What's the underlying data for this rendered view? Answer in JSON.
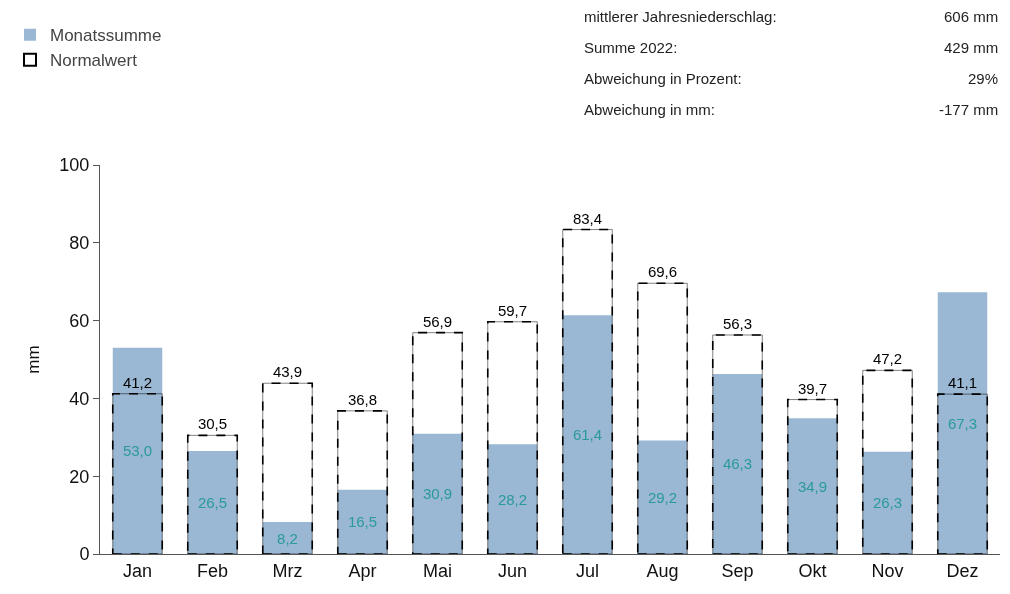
{
  "chart_data": {
    "type": "bar",
    "ylabel": "mm",
    "categories": [
      "Jan",
      "Feb",
      "Mrz",
      "Apr",
      "Mai",
      "Jun",
      "Jul",
      "Aug",
      "Sep",
      "Okt",
      "Nov",
      "Dez"
    ],
    "series": [
      {
        "name": "Monatssumme",
        "color": "#9ab7d3",
        "values": [
          53.0,
          26.5,
          8.2,
          16.5,
          30.9,
          28.2,
          61.4,
          29.2,
          46.3,
          34.9,
          26.3,
          67.3
        ],
        "value_labels": [
          "53,0",
          "26,5",
          "8,2",
          "16,5",
          "30,9",
          "28,2",
          "61,4",
          "29,2",
          "46,3",
          "34,9",
          "26,3",
          "67,3"
        ]
      },
      {
        "name": "Normalwert",
        "color": "#000000",
        "line_style": "dashed",
        "values": [
          41.2,
          30.5,
          43.9,
          36.8,
          56.9,
          59.7,
          83.4,
          69.6,
          56.3,
          39.7,
          47.2,
          41.1
        ],
        "value_labels": [
          "41,2",
          "30,5",
          "43,9",
          "36,8",
          "56,9",
          "59,7",
          "83,4",
          "69,6",
          "56,3",
          "39,7",
          "47,2",
          "41,1"
        ]
      }
    ],
    "ylim": [
      0,
      100
    ],
    "yticks": [
      0,
      20,
      40,
      60,
      80,
      100
    ],
    "legend": "top left",
    "annotations": [
      "mittlerer Jahresniederschlag:",
      "606 mm",
      "Summe 2022:",
      "429 mm",
      "Abweichung in Prozent:",
      "29%",
      "Abweichung in mm:",
      "-177 mm"
    ]
  }
}
